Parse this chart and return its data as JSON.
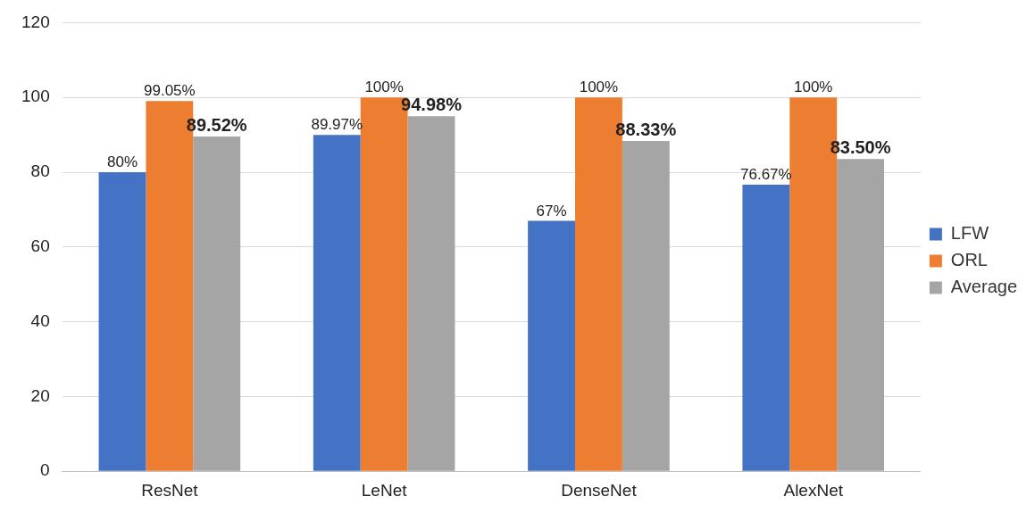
{
  "chart_data": {
    "type": "bar",
    "categories": [
      "ResNet",
      "LeNet",
      "DenseNet",
      "AlexNet"
    ],
    "series": [
      {
        "name": "LFW",
        "color": "#4472c4",
        "values": [
          80,
          89.97,
          67,
          76.67
        ],
        "value_labels": [
          "80%",
          "89.97%",
          "67%",
          "76.67%"
        ]
      },
      {
        "name": "ORL",
        "color": "#ed7d31",
        "values": [
          99.05,
          100,
          100,
          100
        ],
        "value_labels": [
          "99.05%",
          "100%",
          "100%",
          "100%"
        ]
      },
      {
        "name": "Average",
        "color": "#a5a5a5",
        "values": [
          89.52,
          94.98,
          88.33,
          83.5
        ],
        "value_labels": [
          "89.52%",
          "94.98%",
          "88.33%",
          "83.50%"
        ]
      }
    ],
    "ylim": [
      0,
      120
    ],
    "yticks": [
      0,
      20,
      40,
      60,
      80,
      100,
      120
    ],
    "grid": "y",
    "legend": "right"
  }
}
